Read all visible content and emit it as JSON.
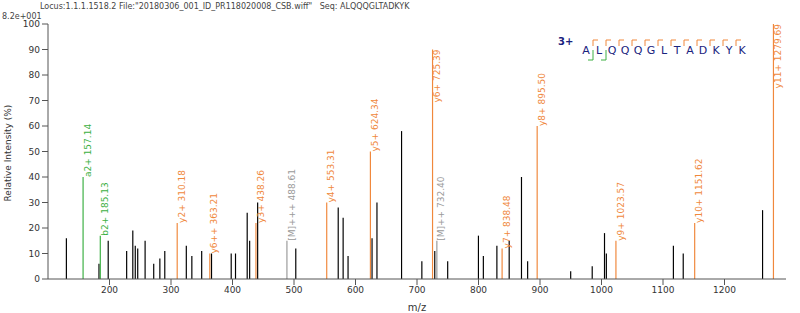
{
  "chart_data": {
    "type": "bar",
    "title": "Locus:1.1.1.1518.2 File:\"20180306_001_ID_PR118020008_CSB.wiff\"   Seq: ALQQQGLTADKYK",
    "subtitle": "8.2e+001",
    "x_label": "m/z",
    "y_label": "Relative Intensity (%)",
    "annotations": {
      "charge": "3+",
      "sequence": "ALQQQGLTADKYK"
    },
    "x": [
      130,
      157.14,
      183,
      185.13,
      198,
      228,
      238,
      242,
      246,
      258,
      272,
      282,
      290,
      310.18,
      325,
      334,
      350,
      363.21,
      366,
      398,
      405,
      424,
      428,
      438.26,
      441,
      488.61,
      503,
      553.31,
      572,
      580,
      588,
      624.34,
      627,
      635,
      675,
      708,
      725.39,
      729,
      732.4,
      750,
      800,
      808,
      830,
      838.48,
      850,
      870,
      880,
      895.5,
      950,
      985,
      1005,
      1008,
      1023.57,
      1117,
      1133,
      1151.62,
      1262,
      1279.69
    ],
    "values": [
      16,
      40,
      6,
      17,
      15,
      11,
      19,
      13,
      12,
      15,
      6,
      8,
      11,
      22,
      13,
      9,
      11,
      10,
      10,
      10,
      10,
      26,
      15,
      22,
      30,
      15,
      12,
      30,
      28,
      24,
      9,
      50,
      16,
      30,
      58,
      7,
      90,
      11,
      15,
      7,
      17,
      9,
      13,
      12,
      15,
      40,
      7,
      60,
      3,
      5,
      18,
      10,
      15,
      13,
      10,
      22,
      27,
      100
    ],
    "colors": [
      "#000000",
      "#3cb043",
      "#000000",
      "#3cb043",
      "#000000",
      "#000000",
      "#000000",
      "#000000",
      "#000000",
      "#000000",
      "#000000",
      "#000000",
      "#000000",
      "#f0883c",
      "#000000",
      "#000000",
      "#000000",
      "#f0883c",
      "#000000",
      "#000000",
      "#000000",
      "#000000",
      "#000000",
      "#f0883c",
      "#000000",
      "#9a9a9a",
      "#000000",
      "#f0883c",
      "#000000",
      "#000000",
      "#000000",
      "#f0883c",
      "#000000",
      "#000000",
      "#000000",
      "#000000",
      "#f0883c",
      "#000000",
      "#9a9a9a",
      "#000000",
      "#000000",
      "#000000",
      "#000000",
      "#f0883c",
      "#000000",
      "#000000",
      "#000000",
      "#f0883c",
      "#000000",
      "#000000",
      "#000000",
      "#000000",
      "#f0883c",
      "#000000",
      "#000000",
      "#f0883c",
      "#000000",
      "#f0883c"
    ],
    "labels": [
      null,
      "a2+ 157.14",
      null,
      "b2+ 185.13",
      null,
      null,
      null,
      null,
      null,
      null,
      null,
      null,
      null,
      "y2+ 310.18",
      null,
      null,
      null,
      "y6++ 363.21",
      null,
      null,
      null,
      null,
      null,
      "y3+ 438.26",
      null,
      "[M]+++ 488.61",
      null,
      "y4+ 553.31",
      null,
      null,
      null,
      "y5+ 624.34",
      null,
      null,
      null,
      null,
      "y6+ 725.39",
      null,
      "[M]++ 732.40",
      null,
      null,
      null,
      null,
      "y7+ 838.48",
      null,
      null,
      null,
      "y8+ 895.50",
      null,
      null,
      null,
      null,
      "y9+ 1023.57",
      null,
      null,
      "y10+ 1151.62",
      null,
      "y11+ 1279.69"
    ],
    "xlim": [
      100,
      1300
    ],
    "xticks": [
      200,
      300,
      400,
      500,
      600,
      700,
      800,
      900,
      1000,
      1100,
      1200
    ],
    "ylim": [
      0,
      100
    ],
    "yticks": [
      0,
      10,
      20,
      30,
      40,
      50,
      60,
      70,
      80,
      90,
      100
    ],
    "grid": false
  }
}
